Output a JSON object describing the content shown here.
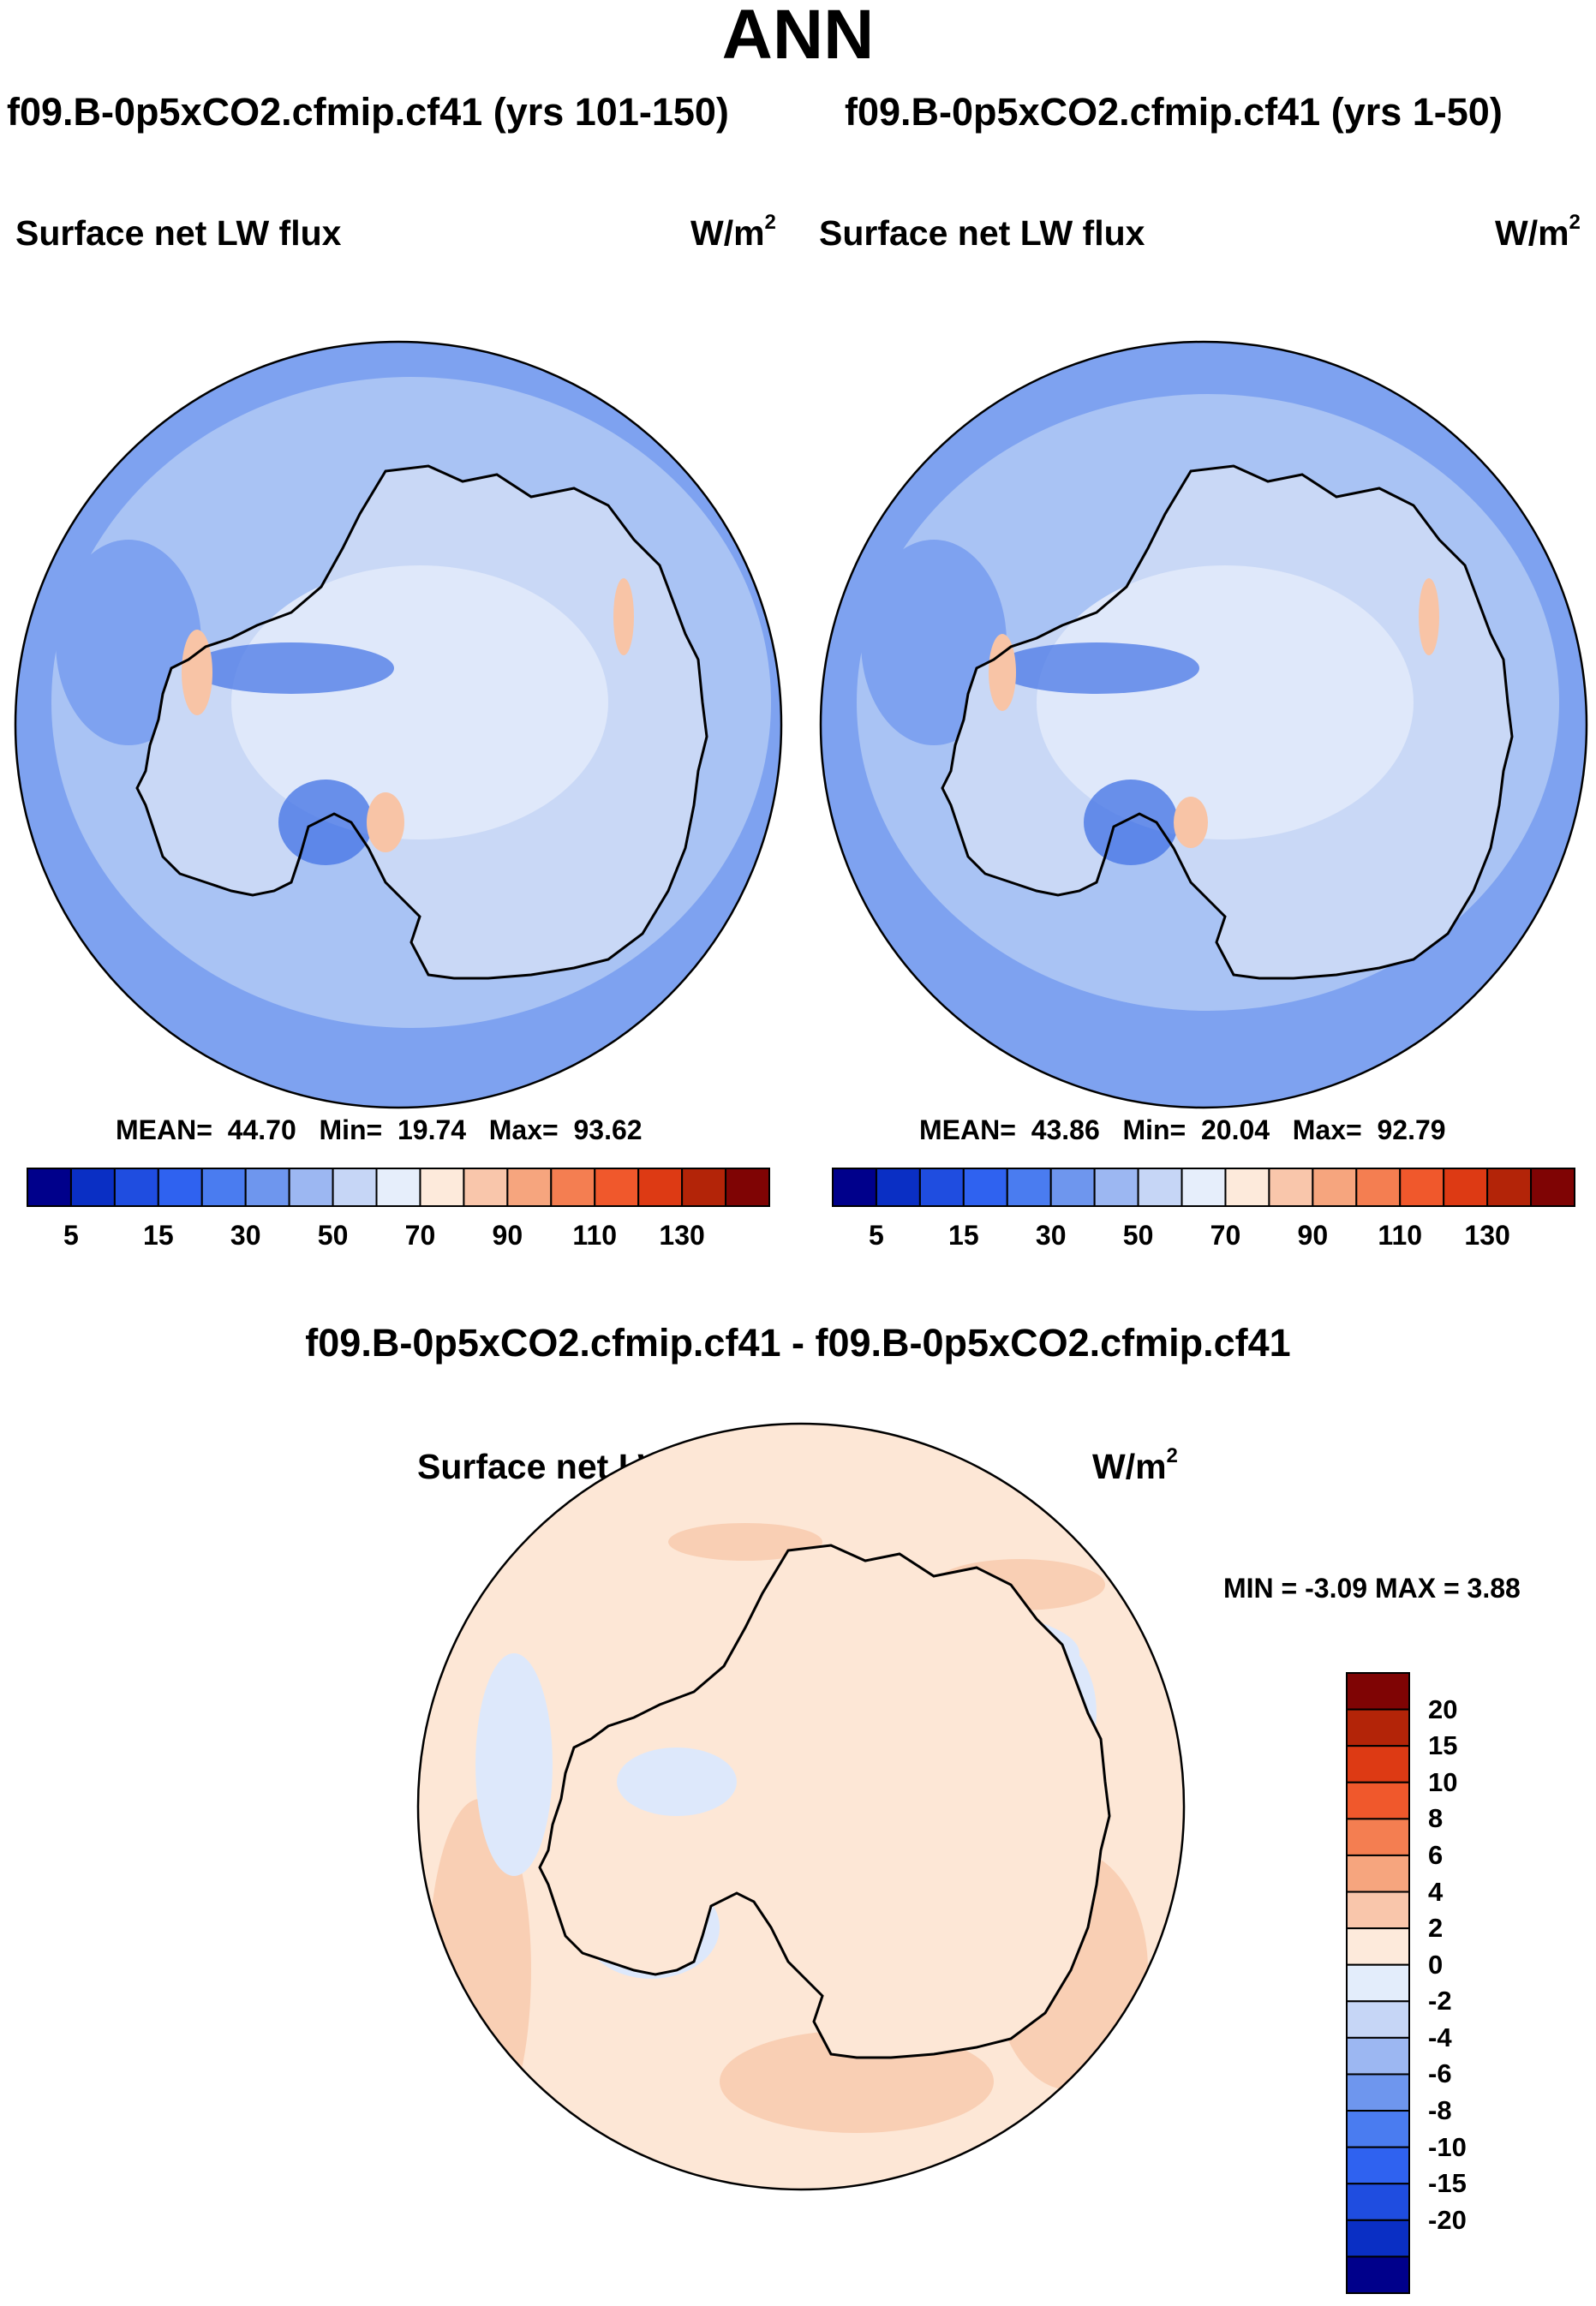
{
  "title": "ANN",
  "panels": [
    {
      "case": "f09.B-0p5xCO2.cfmip.cf41 (yrs 101-150)",
      "variable": "Surface net LW flux",
      "units_base": "W/m",
      "units_exp": "2",
      "stats": {
        "mean_label": "MEAN=",
        "mean": "44.70",
        "min_label": "Min=",
        "min": "19.74",
        "max_label": "Max=",
        "max": "93.62"
      }
    },
    {
      "case": "f09.B-0p5xCO2.cfmip.cf41 (yrs 1-50)",
      "variable": "Surface net LW flux",
      "units_base": "W/m",
      "units_exp": "2",
      "stats": {
        "mean_label": "MEAN=",
        "mean": "43.86",
        "min_label": "Min=",
        "min": "20.04",
        "max_label": "Max=",
        "max": "92.79"
      }
    }
  ],
  "difference": {
    "title": "f09.B-0p5xCO2.cfmip.cf41 - f09.B-0p5xCO2.cfmip.cf41",
    "variable": "Surface net LW flux",
    "units_base": "W/m",
    "units_exp": "2",
    "stats": "MIN =  -3.09 MAX =   3.88"
  },
  "abs_colorbar": {
    "colors": [
      "#00008b",
      "#0a2fc4",
      "#1f4de0",
      "#2f62f0",
      "#4a7cf0",
      "#6e96ee",
      "#9cb7f2",
      "#c6d6f6",
      "#e6eefb",
      "#fdeadb",
      "#f9c6ab",
      "#f6a57e",
      "#f47e51",
      "#f0582c",
      "#dd3a14",
      "#b32408",
      "#7f0404"
    ],
    "tick_labels": [
      "5",
      "15",
      "30",
      "50",
      "70",
      "90",
      "110",
      "130"
    ]
  },
  "diff_colorbar": {
    "colors": [
      "#7f0404",
      "#b32408",
      "#dd3a14",
      "#f0582c",
      "#f47e51",
      "#f6a57e",
      "#f9c6ab",
      "#fdeadb",
      "#e3edfb",
      "#c6d6f6",
      "#9cb7f2",
      "#6e96ee",
      "#4a7cf0",
      "#2f62f0",
      "#1f4de0",
      "#0a2fc4",
      "#00008b"
    ],
    "tick_labels": [
      "20",
      "15",
      "10",
      "8",
      "6",
      "4",
      "2",
      "0",
      "-2",
      "-4",
      "-6",
      "-8",
      "-10",
      "-15",
      "-20"
    ]
  },
  "map_colors": {
    "ocean_abs": "#7ea2f0",
    "ocean_abs_light": "#a9c3f4",
    "land_abs": "#c9d8f6",
    "land_abs_light": "#dfe8fa",
    "dark_blue": "#4a78e6",
    "warm": "#f8c4a6",
    "diff_base": "#fde7d6",
    "diff_warm": "#f9cfb4",
    "diff_cool": "#dde8fb"
  }
}
